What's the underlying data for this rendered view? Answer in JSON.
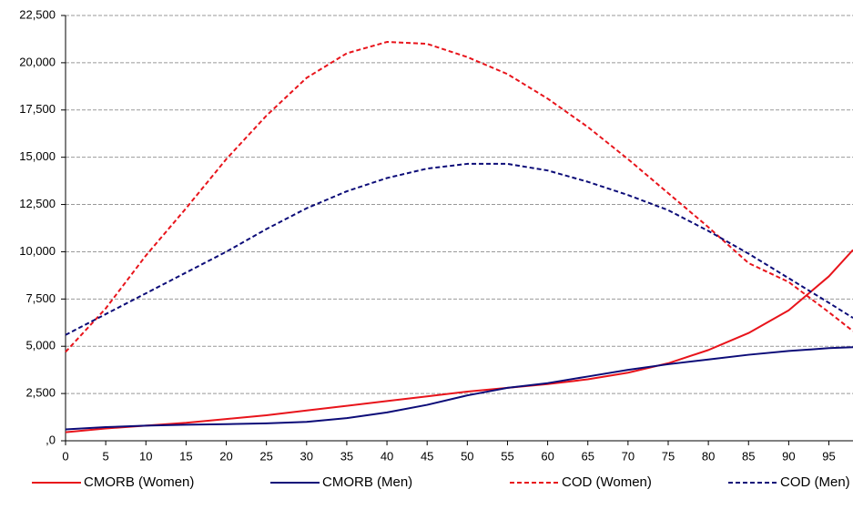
{
  "chart_data": {
    "type": "line",
    "x": [
      0,
      5,
      10,
      15,
      20,
      25,
      30,
      35,
      40,
      45,
      50,
      55,
      60,
      65,
      70,
      75,
      80,
      85,
      90,
      95,
      98
    ],
    "series": [
      {
        "name": "CMORB (Women)",
        "color": "#e8141b",
        "style": "solid",
        "values": [
          450,
          650,
          800,
          950,
          1150,
          1350,
          1600,
          1850,
          2100,
          2350,
          2600,
          2800,
          3000,
          3250,
          3600,
          4100,
          4800,
          5700,
          6900,
          8700,
          10100
        ]
      },
      {
        "name": "CMORB (Men)",
        "color": "#0c0c78",
        "style": "solid",
        "values": [
          600,
          720,
          800,
          850,
          880,
          920,
          1000,
          1200,
          1500,
          1900,
          2400,
          2800,
          3050,
          3400,
          3750,
          4050,
          4300,
          4550,
          4750,
          4900,
          4950
        ]
      },
      {
        "name": "COD (Women)",
        "color": "#e8141b",
        "style": "dashed",
        "values": [
          4700,
          7000,
          9800,
          12300,
          14900,
          17200,
          19200,
          20500,
          21100,
          21000,
          20300,
          19400,
          18100,
          16600,
          14900,
          13100,
          11300,
          9400,
          8400,
          6800,
          5800
        ]
      },
      {
        "name": "COD (Men)",
        "color": "#0c0c78",
        "style": "dashed",
        "values": [
          5600,
          6700,
          7800,
          8900,
          10000,
          11200,
          12300,
          13200,
          13900,
          14400,
          14650,
          14650,
          14300,
          13700,
          13000,
          12200,
          11100,
          9900,
          8600,
          7300,
          6500
        ]
      }
    ],
    "xlim": [
      0,
      98
    ],
    "xticks": [
      0,
      5,
      10,
      15,
      20,
      25,
      30,
      35,
      40,
      45,
      50,
      55,
      60,
      65,
      70,
      75,
      80,
      85,
      90,
      95
    ],
    "ylim": [
      0,
      22500
    ],
    "yticks": [
      {
        "value": 0,
        "label": ",0"
      },
      {
        "value": 2500,
        "label": "2,500"
      },
      {
        "value": 5000,
        "label": "5,000"
      },
      {
        "value": 7500,
        "label": "7,500"
      },
      {
        "value": 10000,
        "label": "10,000"
      },
      {
        "value": 12500,
        "label": "12,500"
      },
      {
        "value": 15000,
        "label": "15,000"
      },
      {
        "value": 17500,
        "label": "17,500"
      },
      {
        "value": 20000,
        "label": "20,000"
      },
      {
        "value": 22500,
        "label": "22,500"
      }
    ],
    "grid": true,
    "legend": "bottom"
  }
}
